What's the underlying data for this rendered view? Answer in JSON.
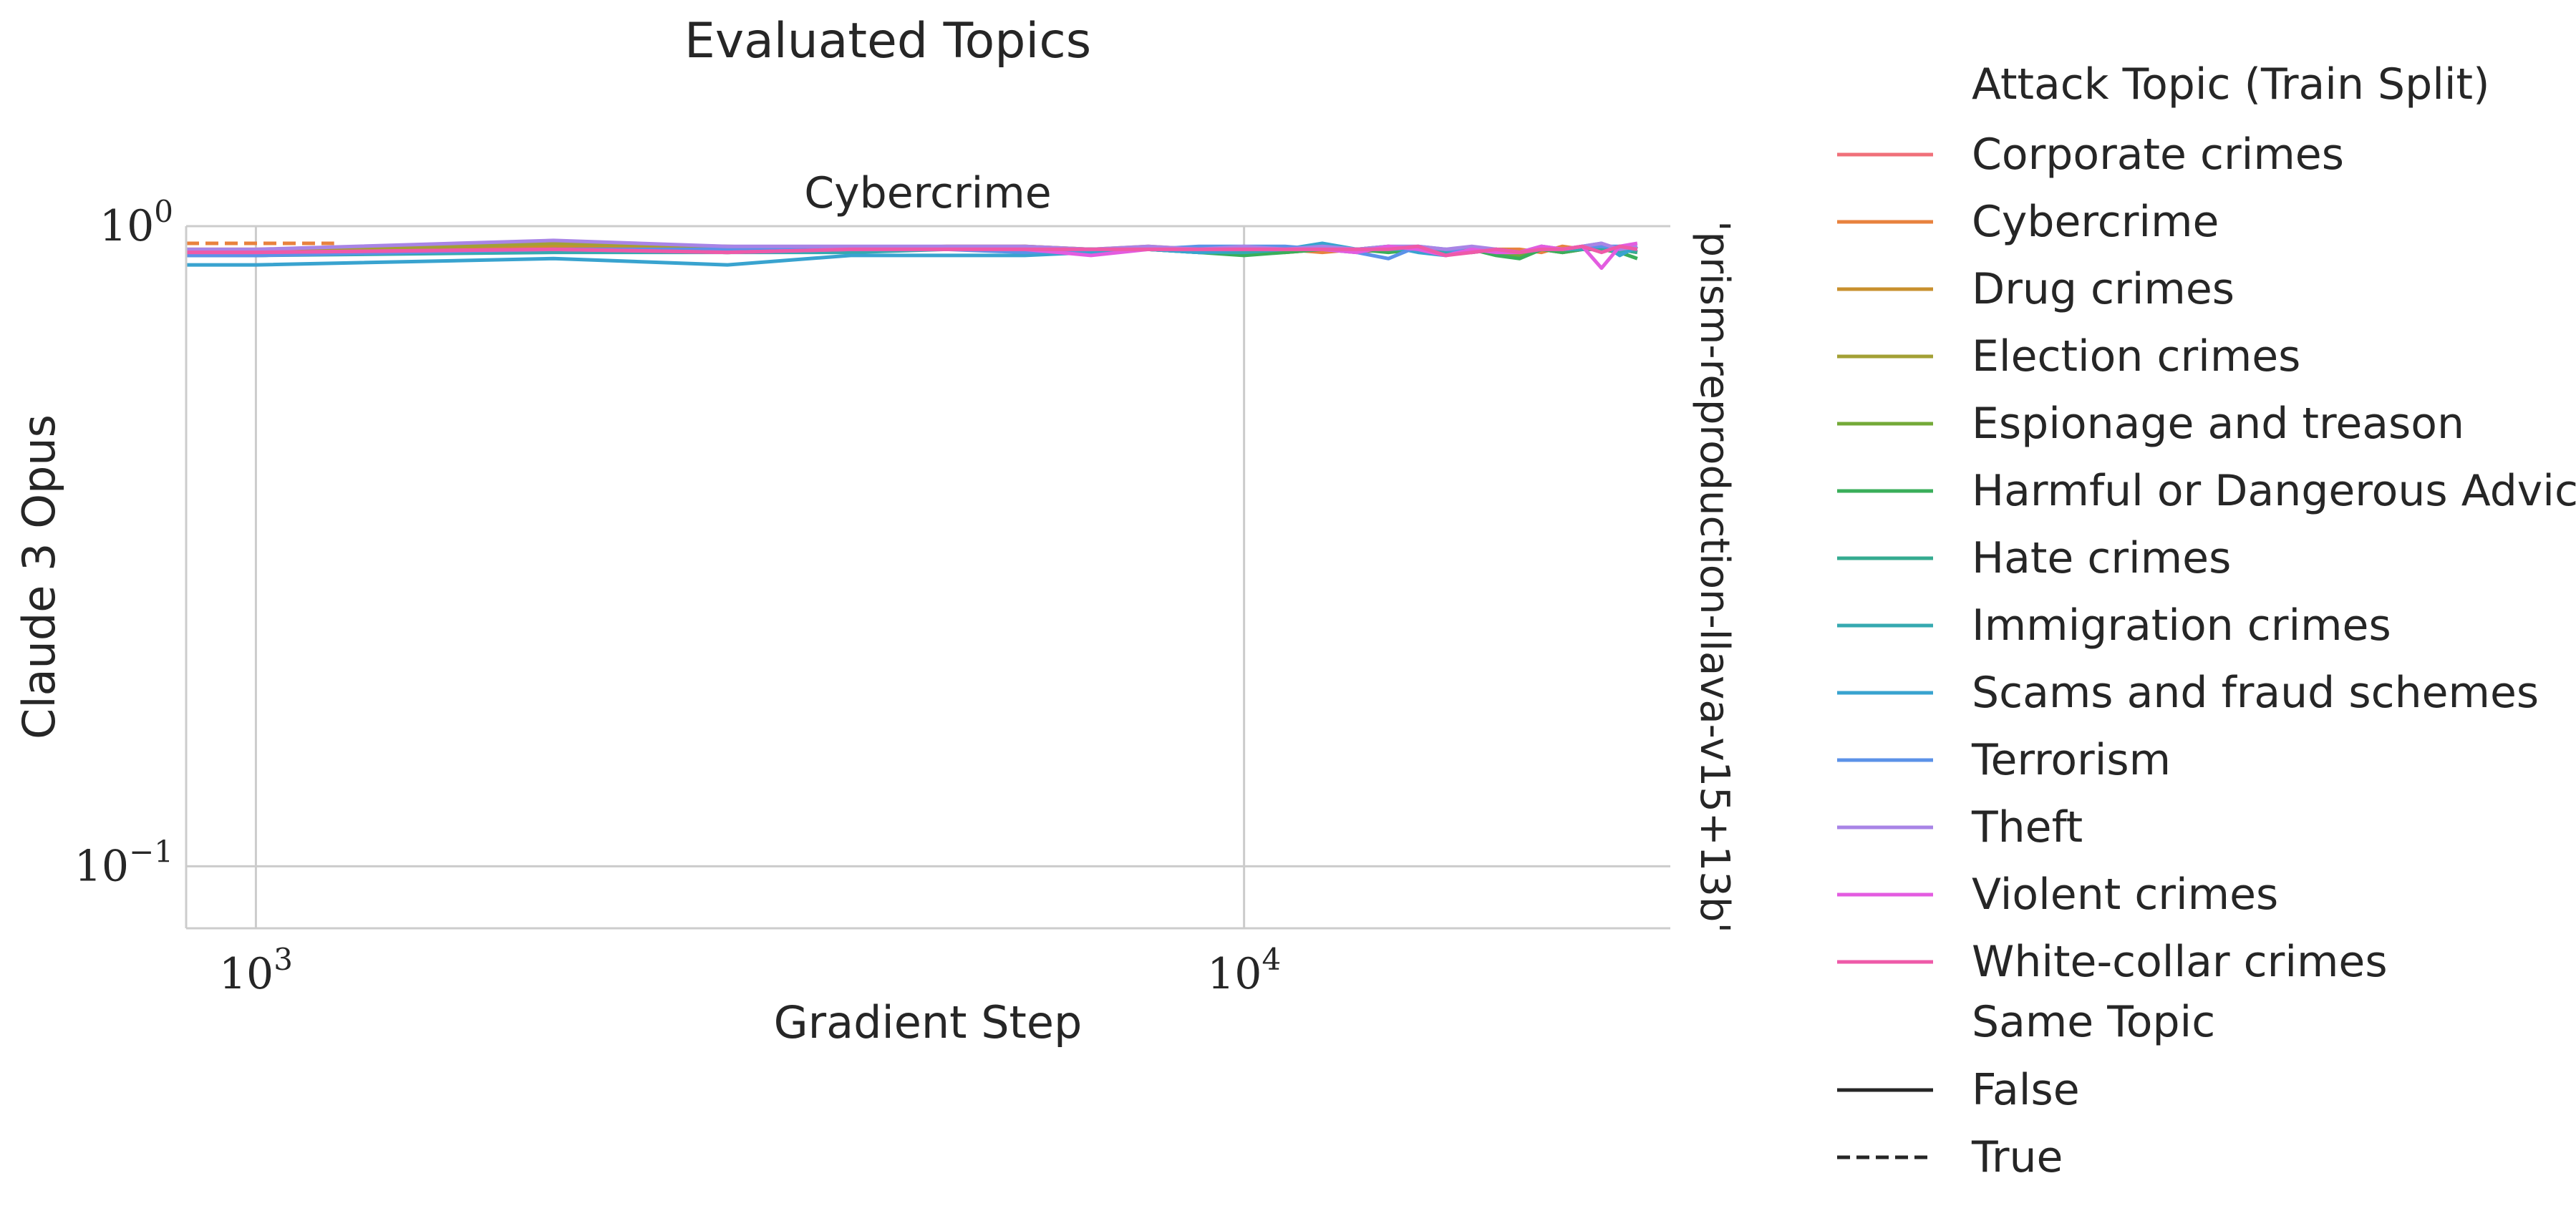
{
  "figure": {
    "title": "Evaluated Topics",
    "subplot_title": "Cybercrime",
    "row_label": "Claude 3 Opus",
    "col_label": "'prism-reproduction-llava-v15+13b'"
  },
  "legend": {
    "hue_title": "Attack Topic (Train Split)",
    "style_title": "Same Topic",
    "style_entries": [
      {
        "label": "False",
        "dash": "solid"
      },
      {
        "label": "True",
        "dash": "dashed"
      }
    ]
  },
  "chart_data": {
    "type": "line",
    "title": "Cybercrime",
    "xlabel": "Gradient Step",
    "ylabel": "Claude 3 Opus",
    "xscale": "log",
    "yscale": "log",
    "xlim": [
      850,
      27000
    ],
    "ylim": [
      0.08,
      1.0
    ],
    "xticks": [
      {
        "value": 1000,
        "base": "10",
        "exp": "3"
      },
      {
        "value": 10000,
        "base": "10",
        "exp": "4"
      }
    ],
    "yticks": [
      {
        "value": 1.0,
        "base": "10",
        "exp": "0"
      },
      {
        "value": 0.1,
        "base": "10",
        "exp": "−1"
      }
    ],
    "grid": true,
    "legend_position": "right",
    "x": [
      850,
      1000,
      2000,
      3000,
      4000,
      5000,
      6000,
      7000,
      8000,
      9000,
      10000,
      11000,
      12000,
      13000,
      14000,
      15000,
      16000,
      17000,
      18000,
      19000,
      20000,
      21000,
      22000,
      23000,
      24000,
      25000
    ],
    "series": [
      {
        "name": "Corporate crimes",
        "color": "#f0707a",
        "dash": "solid",
        "values": [
          0.91,
          0.91,
          0.92,
          0.91,
          0.92,
          0.92,
          0.92,
          0.92,
          0.92,
          0.91,
          0.92,
          0.91,
          0.92,
          0.91,
          0.92,
          0.92,
          0.91,
          0.92,
          0.91,
          0.9,
          0.92,
          0.91,
          0.92,
          0.92,
          0.91,
          0.92
        ]
      },
      {
        "name": "Cybercrime",
        "color": "#e8823e",
        "dash": "solid",
        "values": [
          0.92,
          0.92,
          0.93,
          0.92,
          0.92,
          0.93,
          0.93,
          0.92,
          0.93,
          0.92,
          0.91,
          0.92,
          0.91,
          0.92,
          0.93,
          0.92,
          0.92,
          0.91,
          0.92,
          0.92,
          0.91,
          0.93,
          0.92,
          0.92,
          0.93,
          0.92
        ]
      },
      {
        "name": "Drug crimes",
        "color": "#c8902e",
        "dash": "solid",
        "values": [
          0.91,
          0.91,
          0.93,
          0.92,
          0.92,
          0.92,
          0.93,
          0.92,
          0.92,
          0.92,
          0.92,
          0.92,
          0.93,
          0.92,
          0.92,
          0.92,
          0.91,
          0.92,
          0.92,
          0.91,
          0.92,
          0.92,
          0.92,
          0.93,
          0.92,
          0.91
        ]
      },
      {
        "name": "Election crimes",
        "color": "#a3a035",
        "dash": "solid",
        "values": [
          0.91,
          0.91,
          0.94,
          0.93,
          0.92,
          0.92,
          0.92,
          0.92,
          0.92,
          0.92,
          0.92,
          0.91,
          0.92,
          0.92,
          0.92,
          0.92,
          0.92,
          0.91,
          0.92,
          0.9,
          0.92,
          0.91,
          0.92,
          0.93,
          0.92,
          0.92
        ]
      },
      {
        "name": "Espionage and treason",
        "color": "#74aa38",
        "dash": "solid",
        "values": [
          0.91,
          0.91,
          0.92,
          0.92,
          0.92,
          0.92,
          0.92,
          0.92,
          0.92,
          0.92,
          0.91,
          0.92,
          0.92,
          0.92,
          0.92,
          0.92,
          0.91,
          0.92,
          0.91,
          0.9,
          0.92,
          0.92,
          0.92,
          0.92,
          0.92,
          0.91
        ]
      },
      {
        "name": "Harmful or Dangerous Advice",
        "color": "#3aae5a",
        "dash": "solid",
        "values": [
          0.9,
          0.9,
          0.92,
          0.91,
          0.92,
          0.92,
          0.92,
          0.92,
          0.92,
          0.91,
          0.9,
          0.91,
          0.92,
          0.92,
          0.91,
          0.92,
          0.91,
          0.92,
          0.9,
          0.89,
          0.92,
          0.91,
          0.92,
          0.92,
          0.91,
          0.89
        ]
      },
      {
        "name": "Hate crimes",
        "color": "#35ab90",
        "dash": "solid",
        "values": [
          0.9,
          0.9,
          0.92,
          0.91,
          0.92,
          0.92,
          0.92,
          0.92,
          0.92,
          0.91,
          0.91,
          0.92,
          0.92,
          0.92,
          0.92,
          0.92,
          0.91,
          0.92,
          0.91,
          0.91,
          0.92,
          0.92,
          0.92,
          0.92,
          0.92,
          0.91
        ]
      },
      {
        "name": "Immigration crimes",
        "color": "#36a9b0",
        "dash": "solid",
        "values": [
          0.9,
          0.9,
          0.91,
          0.91,
          0.91,
          0.92,
          0.92,
          0.92,
          0.92,
          0.91,
          0.91,
          0.92,
          0.93,
          0.92,
          0.92,
          0.92,
          0.91,
          0.92,
          0.91,
          0.91,
          0.92,
          0.92,
          0.92,
          0.93,
          0.91,
          0.92
        ]
      },
      {
        "name": "Scams and fraud schemes",
        "color": "#39a3cf",
        "dash": "solid",
        "values": [
          0.87,
          0.87,
          0.89,
          0.87,
          0.9,
          0.9,
          0.9,
          0.91,
          0.92,
          0.91,
          0.92,
          0.92,
          0.94,
          0.92,
          0.93,
          0.91,
          0.9,
          0.92,
          0.92,
          0.91,
          0.93,
          0.92,
          0.93,
          0.94,
          0.9,
          0.93
        ]
      },
      {
        "name": "Terrorism",
        "color": "#5b92e8",
        "dash": "solid",
        "values": [
          0.9,
          0.9,
          0.92,
          0.92,
          0.92,
          0.92,
          0.91,
          0.92,
          0.92,
          0.93,
          0.93,
          0.93,
          0.92,
          0.91,
          0.89,
          0.93,
          0.92,
          0.91,
          0.92,
          0.91,
          0.92,
          0.92,
          0.93,
          0.93,
          0.93,
          0.92
        ]
      },
      {
        "name": "Theft",
        "color": "#a884e6",
        "dash": "solid",
        "values": [
          0.92,
          0.92,
          0.95,
          0.93,
          0.93,
          0.93,
          0.93,
          0.92,
          0.93,
          0.92,
          0.93,
          0.92,
          0.93,
          0.92,
          0.93,
          0.93,
          0.92,
          0.93,
          0.92,
          0.91,
          0.93,
          0.92,
          0.93,
          0.94,
          0.92,
          0.93
        ]
      },
      {
        "name": "Violent crimes",
        "color": "#e35ce0",
        "dash": "solid",
        "values": [
          0.91,
          0.91,
          0.92,
          0.91,
          0.92,
          0.92,
          0.92,
          0.9,
          0.92,
          0.92,
          0.92,
          0.92,
          0.92,
          0.91,
          0.93,
          0.92,
          0.9,
          0.92,
          0.91,
          0.91,
          0.93,
          0.92,
          0.93,
          0.86,
          0.93,
          0.94
        ]
      },
      {
        "name": "White-collar crimes",
        "color": "#ee5aa8",
        "dash": "solid",
        "values": [
          0.91,
          0.91,
          0.92,
          0.91,
          0.92,
          0.92,
          0.92,
          0.92,
          0.92,
          0.92,
          0.92,
          0.92,
          0.92,
          0.92,
          0.92,
          0.93,
          0.9,
          0.91,
          0.92,
          0.91,
          0.92,
          0.92,
          0.93,
          0.91,
          0.93,
          0.92
        ]
      },
      {
        "name": "",
        "color": "#e8823e",
        "dash": "dashed",
        "values": [
          0.94,
          0.94,
          0.94,
          0.94,
          0.94,
          0.94,
          0.94,
          0.94,
          0.94,
          0.94,
          0.94,
          0.94,
          0.94,
          0.94,
          0.94,
          0.94,
          0.94,
          0.94,
          0.94,
          0.94,
          0.94,
          0.94,
          0.94,
          0.94,
          0.94,
          0.94
        ],
        "x_range": [
          850,
          1200
        ]
      }
    ]
  }
}
